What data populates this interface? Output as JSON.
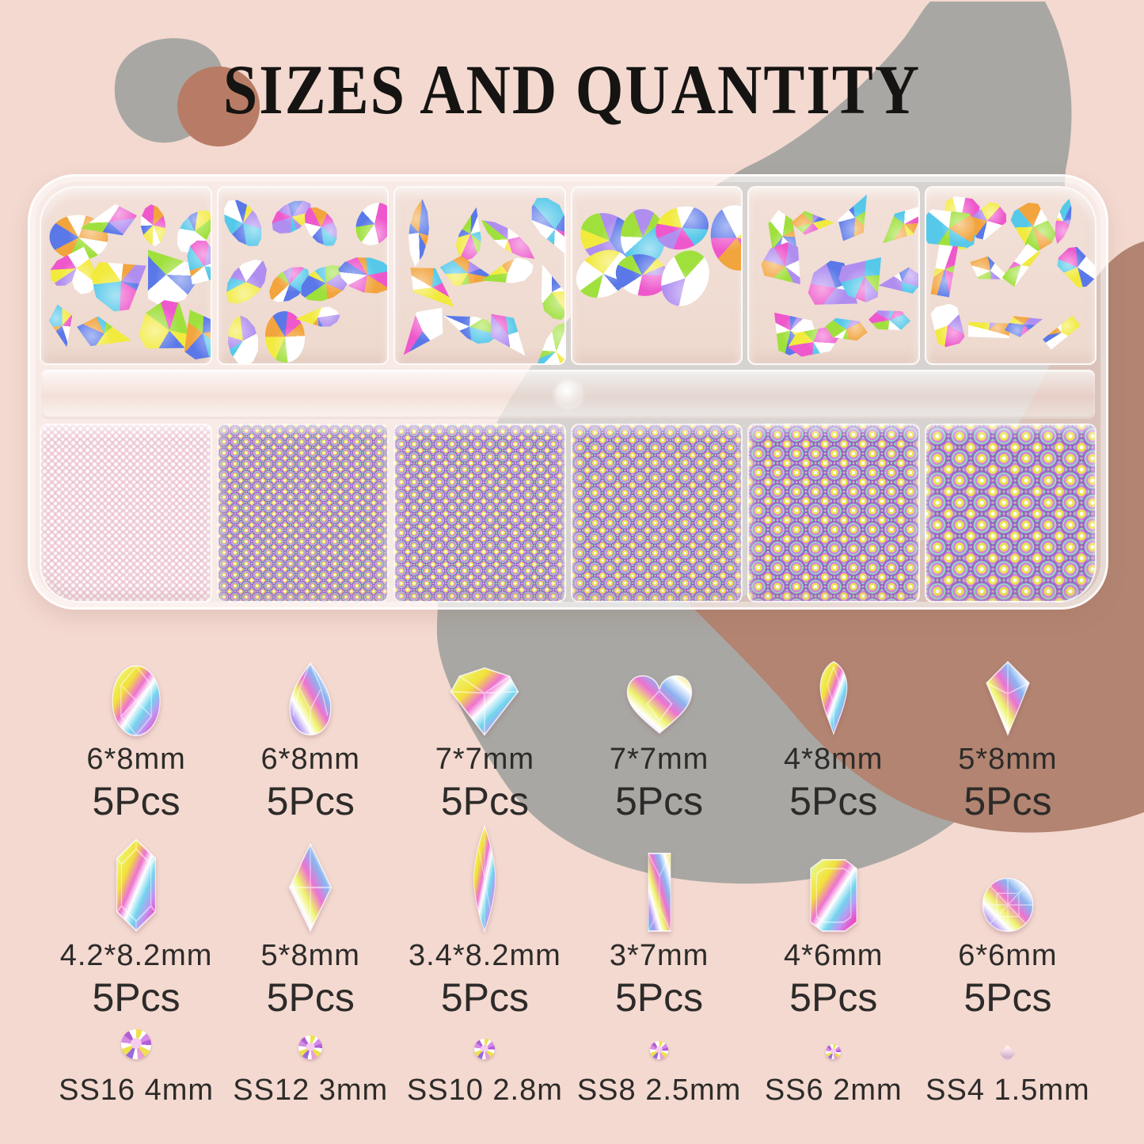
{
  "title": "SIZES AND QUANTITY",
  "colors": {
    "background": "#f3d9d0",
    "blob_gray_small": "#a8a7a3",
    "blob_terracotta": "#b87c66",
    "blob_gray_large": "#a8a7a3",
    "blob_brown_large": "#b28471",
    "title_text": "#151412",
    "label_text": "#2d2b29",
    "gem_palette": [
      "#f2ea3d",
      "#ee58cc",
      "#ffffff",
      "#56c8ea",
      "#b08ef0",
      "#f2a43d",
      "#a0e03d",
      "#5a78e8",
      "#ffffff"
    ]
  },
  "legend": {
    "row1": [
      {
        "shape": "oval",
        "size": "6*8mm",
        "qty": "5Pcs"
      },
      {
        "shape": "pear",
        "size": "6*8mm",
        "qty": "5Pcs"
      },
      {
        "shape": "diamond",
        "size": "7*7mm",
        "qty": "5Pcs"
      },
      {
        "shape": "heart",
        "size": "7*7mm",
        "qty": "5Pcs"
      },
      {
        "shape": "drop",
        "size": "4*8mm",
        "qty": "5Pcs"
      },
      {
        "shape": "kite",
        "size": "5*8mm",
        "qty": "5Pcs"
      }
    ],
    "row2": [
      {
        "shape": "hexagon",
        "size": "4.2*8.2mm",
        "qty": "5Pcs"
      },
      {
        "shape": "rhombus",
        "size": "5*8mm",
        "qty": "5Pcs"
      },
      {
        "shape": "marquise",
        "size": "3.4*8.2mm",
        "qty": "5Pcs"
      },
      {
        "shape": "baguette",
        "size": "3*7mm",
        "qty": "5Pcs"
      },
      {
        "shape": "emerald",
        "size": "4*6mm",
        "qty": "5Pcs"
      },
      {
        "shape": "round",
        "size": "6*6mm",
        "qty": "5Pcs"
      }
    ],
    "row3": [
      {
        "shape": "round-ss",
        "label": "SS16 4mm"
      },
      {
        "shape": "round-ss",
        "label": "SS12 3mm"
      },
      {
        "shape": "round-ss",
        "label": "SS10 2.8m"
      },
      {
        "shape": "round-ss",
        "label": "SS8 2.5mm"
      },
      {
        "shape": "round-ss",
        "label": "SS6 2mm"
      },
      {
        "shape": "bicone",
        "label": "SS4 1.5mm"
      }
    ]
  },
  "case": {
    "top_compartments": [
      {
        "shapes": [
          "pear",
          "kite",
          "diamond",
          "oval",
          "heart"
        ],
        "count": 12,
        "min": 52,
        "max": 78
      },
      {
        "shapes": [
          "pear",
          "drop",
          "oval",
          "pear"
        ],
        "count": 11,
        "min": 52,
        "max": 76
      },
      {
        "shapes": [
          "drop",
          "marquise",
          "kite",
          "drop"
        ],
        "count": 12,
        "min": 66,
        "max": 96
      },
      {
        "shapes": [
          "oval"
        ],
        "count": 7,
        "min": 66,
        "max": 86
      },
      {
        "shapes": [
          "hexagon",
          "kite",
          "rhombus",
          "diamond"
        ],
        "count": 12,
        "min": 50,
        "max": 72
      },
      {
        "shapes": [
          "emerald",
          "baguette",
          "marquise",
          "kite"
        ],
        "count": 13,
        "min": 46,
        "max": 70
      }
    ],
    "bottom_dot_sizes": [
      9,
      14,
      16,
      19,
      24,
      28
    ]
  }
}
